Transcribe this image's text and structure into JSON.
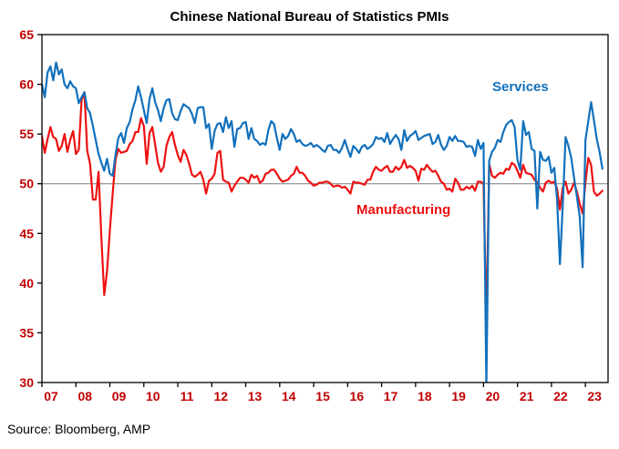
{
  "source": "Source: Bloomberg, AMP",
  "colors": {
    "axis_label": "#c00000",
    "frame": "#000000",
    "reference_line": "#7f7f7f",
    "background": "#ffffff",
    "title": "#000000"
  },
  "chart_data": {
    "type": "line",
    "title": "Chinese National Bureau of Statistics PMIs",
    "xlabel": "",
    "ylabel": "",
    "ylim": [
      30,
      65
    ],
    "y_ticks": [
      30,
      35,
      40,
      45,
      50,
      55,
      60,
      65
    ],
    "reference_line": 50,
    "grid": "horizontal line at 50 only",
    "legend_position": "inline-annotations",
    "x_unit": "monthly",
    "x_range": [
      "2007-01",
      "2023-07"
    ],
    "n_months_axis": 200,
    "months_per_tick": 12,
    "x_tick_labels": [
      "07",
      "08",
      "09",
      "10",
      "11",
      "12",
      "13",
      "14",
      "15",
      "16",
      "17",
      "18",
      "19",
      "20",
      "21",
      "22",
      "23"
    ],
    "series": [
      {
        "name": "Manufacturing",
        "color": "#ee1111",
        "values": [
          54.8,
          53.1,
          54.5,
          55.7,
          54.7,
          54.5,
          53.3,
          53.8,
          55.0,
          53.2,
          54.4,
          55.3,
          53.0,
          53.4,
          58.4,
          59.2,
          53.3,
          52.0,
          48.4,
          48.4,
          51.2,
          44.6,
          38.8,
          41.2,
          45.3,
          49.0,
          52.4,
          53.5,
          53.1,
          53.2,
          53.3,
          54.0,
          54.3,
          55.2,
          55.2,
          56.6,
          55.8,
          52.0,
          55.1,
          55.7,
          53.9,
          52.1,
          51.2,
          51.7,
          53.8,
          54.7,
          55.2,
          53.9,
          52.9,
          52.2,
          53.4,
          52.9,
          52.0,
          50.9,
          50.7,
          50.9,
          51.2,
          50.4,
          49.0,
          50.3,
          50.5,
          51.0,
          53.1,
          53.3,
          50.4,
          50.2,
          50.1,
          49.2,
          49.8,
          50.2,
          50.6,
          50.6,
          50.4,
          50.1,
          50.9,
          50.6,
          50.8,
          50.1,
          50.3,
          51.0,
          51.1,
          51.4,
          51.4,
          51.0,
          50.5,
          50.2,
          50.3,
          50.4,
          50.8,
          51.0,
          51.7,
          51.1,
          51.1,
          50.8,
          50.3,
          50.1,
          49.8,
          49.9,
          50.1,
          50.1,
          50.2,
          50.2,
          50.0,
          49.7,
          49.8,
          49.8,
          49.6,
          49.7,
          49.4,
          49.0,
          50.2,
          50.1,
          50.1,
          50.0,
          49.9,
          50.4,
          50.4,
          51.2,
          51.7,
          51.4,
          51.3,
          51.6,
          51.8,
          51.2,
          51.2,
          51.7,
          51.4,
          51.7,
          52.4,
          51.6,
          51.8,
          51.6,
          51.3,
          50.3,
          51.5,
          51.4,
          51.9,
          51.5,
          51.2,
          51.3,
          50.8,
          50.2,
          50.0,
          49.4,
          49.5,
          49.2,
          50.5,
          50.1,
          49.4,
          49.4,
          49.7,
          49.5,
          49.8,
          49.3,
          50.2,
          50.2,
          50.0,
          35.7,
          52.0,
          50.8,
          50.6,
          50.9,
          51.1,
          51.0,
          51.5,
          51.4,
          52.1,
          51.9,
          51.3,
          50.6,
          51.9,
          51.1,
          51.0,
          50.9,
          50.4,
          50.1,
          49.6,
          49.2,
          50.1,
          50.3,
          50.1,
          50.2,
          49.5,
          47.4,
          49.6,
          50.2,
          49.0,
          49.4,
          50.1,
          49.2,
          48.0,
          47.0,
          50.1,
          52.6,
          51.9,
          49.2,
          48.8,
          49.0,
          49.3
        ]
      },
      {
        "name": "Services",
        "color": "#1170bc",
        "values": [
          60.0,
          58.7,
          61.2,
          61.8,
          60.4,
          62.2,
          61.0,
          61.5,
          60.0,
          59.6,
          60.3,
          59.8,
          59.6,
          58.1,
          58.7,
          59.2,
          57.6,
          57.1,
          55.8,
          54.4,
          53.0,
          52.1,
          51.3,
          52.5,
          51.0,
          50.8,
          52.9,
          54.6,
          55.1,
          54.1,
          55.6,
          56.2,
          57.5,
          58.4,
          59.8,
          58.7,
          57.4,
          56.1,
          58.5,
          59.6,
          58.2,
          57.4,
          56.3,
          57.6,
          58.4,
          58.5,
          57.1,
          56.5,
          56.4,
          57.3,
          58.0,
          57.8,
          57.6,
          57.0,
          56.1,
          57.6,
          57.7,
          57.7,
          55.6,
          56.0,
          53.5,
          55.3,
          56.0,
          56.1,
          55.2,
          56.7,
          55.6,
          56.3,
          53.7,
          55.5,
          55.6,
          56.1,
          56.2,
          54.5,
          55.6,
          54.5,
          54.3,
          53.9,
          54.1,
          53.9,
          55.4,
          56.3,
          56.0,
          54.6,
          53.4,
          55.0,
          54.5,
          54.8,
          55.5,
          55.0,
          54.2,
          54.4,
          54.0,
          53.8,
          53.9,
          54.1,
          53.7,
          53.9,
          53.7,
          53.4,
          53.2,
          53.8,
          53.9,
          53.4,
          53.4,
          53.1,
          53.6,
          54.4,
          53.5,
          52.7,
          53.8,
          53.5,
          53.1,
          53.7,
          53.9,
          53.5,
          53.7,
          54.0,
          54.7,
          54.5,
          54.6,
          54.2,
          55.1,
          54.0,
          54.5,
          54.9,
          54.5,
          53.4,
          55.4,
          54.3,
          54.8,
          55.0,
          55.3,
          54.4,
          54.6,
          54.8,
          54.9,
          55.0,
          54.0,
          54.2,
          54.9,
          53.9,
          53.4,
          53.8,
          54.7,
          54.3,
          54.8,
          54.3,
          54.3,
          54.2,
          53.7,
          53.8,
          53.7,
          52.8,
          54.4,
          53.5,
          54.1,
          29.6,
          52.3,
          53.2,
          53.6,
          54.4,
          54.2,
          55.2,
          55.9,
          56.2,
          56.4,
          55.7,
          52.4,
          51.4,
          56.3,
          54.9,
          55.2,
          53.5,
          53.3,
          47.5,
          53.2,
          52.4,
          52.3,
          52.7,
          51.1,
          51.6,
          48.4,
          41.9,
          47.8,
          54.7,
          53.8,
          52.6,
          50.6,
          48.7,
          46.7,
          41.6,
          54.4,
          56.3,
          58.2,
          56.4,
          54.5,
          53.2,
          51.5
        ]
      }
    ]
  }
}
